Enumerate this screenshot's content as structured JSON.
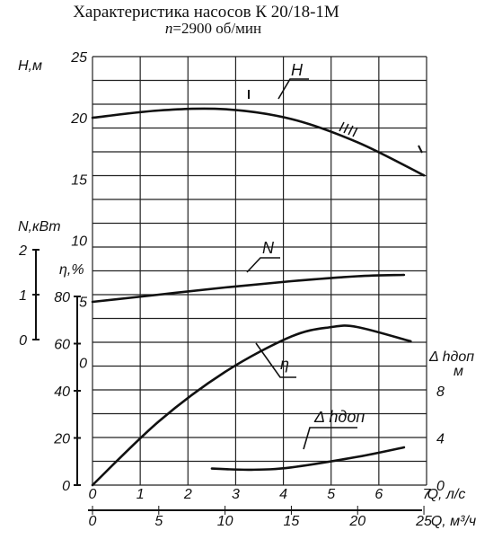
{
  "title": "Характеристика насосов К 20/18-1М",
  "subtitle_prefix": "n",
  "subtitle_rest": "=2900 об/мин",
  "chart_data": {
    "type": "line",
    "x_axes": [
      {
        "label": "Q, л/с",
        "ticks": [
          "0",
          "1",
          "2",
          "3",
          "4",
          "5",
          "6",
          "7"
        ]
      },
      {
        "label": "Q, м³/ч",
        "ticks": [
          "0",
          "5",
          "10",
          "15",
          "20",
          "25"
        ]
      }
    ],
    "y_axes": [
      {
        "label": "H,м",
        "ticks": [
          "25",
          "20",
          "15",
          "10",
          "5",
          "0"
        ],
        "ylim": [
          0,
          25
        ]
      },
      {
        "label": "N,кВт",
        "ticks": [
          "2",
          "1",
          "0"
        ],
        "ylim": [
          0,
          2
        ]
      },
      {
        "label": "η,%",
        "ticks": [
          "80",
          "60",
          "40",
          "20",
          "0"
        ],
        "ylim": [
          0,
          80
        ]
      },
      {
        "label": "Δ hдоп, м",
        "ticks": [
          "8",
          "4",
          "0"
        ],
        "ylim": [
          0,
          12
        ]
      }
    ],
    "series": [
      {
        "name": "H",
        "unit": "м",
        "x_m3h": [
          0,
          5,
          10,
          15,
          20,
          25
        ],
        "y": [
          20.0,
          20.6,
          20.7,
          19.9,
          18.0,
          15.3
        ]
      },
      {
        "name": "N",
        "unit": "кВт",
        "x_m3h": [
          0,
          5,
          10,
          15,
          20,
          23.5
        ],
        "y": [
          0.84,
          1.0,
          1.16,
          1.3,
          1.41,
          1.44
        ]
      },
      {
        "name": "η",
        "unit": "%",
        "x_m3h": [
          0,
          5,
          10,
          15,
          18,
          20,
          24
        ],
        "y": [
          0,
          27,
          48,
          63,
          67,
          67,
          61
        ]
      },
      {
        "name": "Δ hдоп",
        "unit": "м",
        "x_m3h": [
          9,
          12,
          15,
          20,
          23.5
        ],
        "y": [
          1.4,
          1.3,
          1.5,
          2.4,
          3.2
        ]
      }
    ],
    "grid": true
  }
}
